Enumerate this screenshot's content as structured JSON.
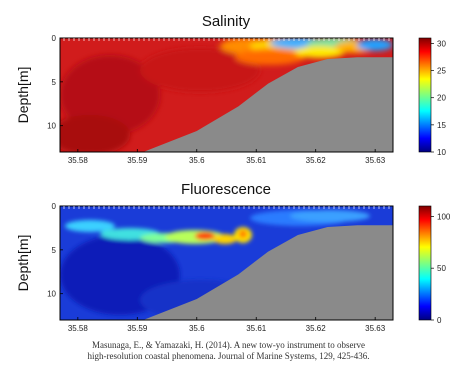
{
  "chart_data": [
    {
      "type": "heatmap",
      "title": "Salinity",
      "ylabel": "Depth[m]",
      "xticks": [
        "35.58",
        "35.59",
        "35.6",
        "35.61",
        "35.62",
        "35.63"
      ],
      "xlim": [
        35.577,
        35.633
      ],
      "yticks": [
        "0",
        "5",
        "10"
      ],
      "ylim": [
        0,
        13
      ],
      "colorbar": {
        "ticks": [
          "10",
          "15",
          "20",
          "25",
          "30"
        ],
        "range": [
          10,
          31
        ]
      },
      "bottom_profile": {
        "x": [
          35.577,
          35.591,
          35.6,
          35.607,
          35.612,
          35.617,
          35.622,
          35.627,
          35.633
        ],
        "depth": [
          13.2,
          13.0,
          10.6,
          7.8,
          5.2,
          3.3,
          2.4,
          2.2,
          2.2
        ]
      },
      "colormap": "jet"
    },
    {
      "type": "heatmap",
      "title": "Fluorescence",
      "ylabel": "Depth[m]",
      "xticks": [
        "35.58",
        "35.59",
        "35.6",
        "35.61",
        "35.62",
        "35.63"
      ],
      "xlim": [
        35.577,
        35.633
      ],
      "yticks": [
        "0",
        "5",
        "10"
      ],
      "ylim": [
        0,
        13
      ],
      "colorbar": {
        "ticks": [
          "0",
          "50",
          "100"
        ],
        "range": [
          0,
          110
        ]
      },
      "bottom_profile": {
        "x": [
          35.577,
          35.591,
          35.6,
          35.607,
          35.612,
          35.617,
          35.622,
          35.627,
          35.633
        ],
        "depth": [
          13.2,
          13.0,
          10.6,
          7.8,
          5.2,
          3.3,
          2.4,
          2.2,
          2.2
        ]
      },
      "colormap": "jet"
    }
  ],
  "citation": {
    "line1": "Masunaga, E., & Yamazaki, H. (2014). A new tow-yo instrument to observe",
    "line2": "high-resolution coastal phenomena. Journal of Marine Systems, 129, 425-436."
  },
  "colors": {
    "seafloor": "#8a8a8a",
    "frame": "#000000"
  }
}
